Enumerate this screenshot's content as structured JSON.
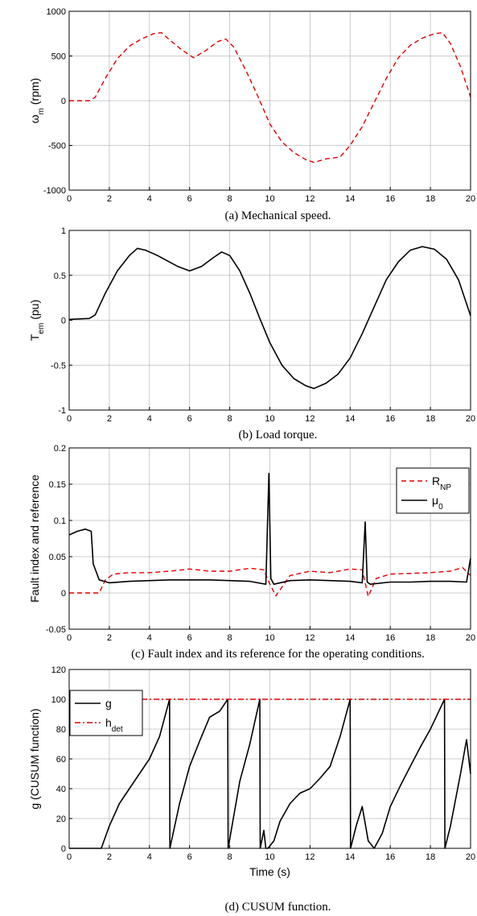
{
  "chart_data": [
    {
      "type": "line",
      "ylabel": "ω",
      "ylabel_sub": "m",
      "ylabel_tail": " (rpm)",
      "xlabel": "",
      "caption": "(a) Mechanical speed.",
      "xlim": [
        0,
        20
      ],
      "ylim": [
        -1000,
        1000
      ],
      "xticks": [
        "0",
        "2",
        "4",
        "6",
        "8",
        "10",
        "12",
        "14",
        "16",
        "18",
        "20"
      ],
      "yticks": [
        "-1000",
        "-500",
        "0",
        "500",
        "1000"
      ],
      "grid": true,
      "legend": "none",
      "series": [
        {
          "color": "#e00000",
          "dash": "dashed",
          "x": [
            0,
            1.0,
            1.3,
            1.8,
            2.4,
            3.0,
            3.6,
            4.2,
            4.6,
            5.0,
            5.6,
            6.2,
            6.8,
            7.4,
            7.8,
            8.2,
            8.8,
            9.4,
            10.0,
            10.6,
            11.2,
            11.8,
            12.2,
            12.8,
            13.5,
            14.0,
            14.6,
            15.2,
            15.8,
            16.4,
            17.0,
            17.6,
            18.2,
            18.6,
            19.0,
            19.5,
            20.0
          ],
          "y": [
            0,
            0,
            40,
            250,
            470,
            610,
            690,
            750,
            760,
            680,
            570,
            480,
            560,
            660,
            690,
            600,
            340,
            50,
            -260,
            -460,
            -580,
            -660,
            -690,
            -650,
            -630,
            -500,
            -290,
            -20,
            250,
            480,
            620,
            700,
            750,
            760,
            640,
            380,
            40
          ]
        }
      ]
    },
    {
      "type": "line",
      "ylabel": "T",
      "ylabel_sub": "em",
      "ylabel_tail": " (pu)",
      "xlabel": "",
      "caption": "(b) Load torque.",
      "xlim": [
        0,
        20
      ],
      "ylim": [
        -1,
        1
      ],
      "xticks": [
        "0",
        "2",
        "4",
        "6",
        "8",
        "10",
        "12",
        "14",
        "16",
        "18",
        "20"
      ],
      "yticks": [
        "-1",
        "-0.5",
        "0",
        "0.5",
        "1"
      ],
      "grid": true,
      "legend": "none",
      "series": [
        {
          "color": "#000000",
          "dash": "solid",
          "x": [
            0,
            1.0,
            1.3,
            1.8,
            2.4,
            3.0,
            3.4,
            3.8,
            4.4,
            4.9,
            5.4,
            6.0,
            6.6,
            7.2,
            7.6,
            8.0,
            8.5,
            9.0,
            9.5,
            10.0,
            10.6,
            11.2,
            11.8,
            12.2,
            12.8,
            13.4,
            14.0,
            14.6,
            15.2,
            15.8,
            16.4,
            17.0,
            17.6,
            18.2,
            18.8,
            19.4,
            20.0
          ],
          "y": [
            0.01,
            0.02,
            0.06,
            0.3,
            0.55,
            0.72,
            0.8,
            0.78,
            0.72,
            0.66,
            0.6,
            0.55,
            0.6,
            0.7,
            0.76,
            0.72,
            0.55,
            0.3,
            0.02,
            -0.25,
            -0.5,
            -0.65,
            -0.73,
            -0.76,
            -0.7,
            -0.6,
            -0.42,
            -0.15,
            0.15,
            0.45,
            0.65,
            0.78,
            0.82,
            0.79,
            0.68,
            0.45,
            0.05
          ]
        }
      ]
    },
    {
      "type": "line",
      "ylabel": "Fault index and reference",
      "xlabel": "",
      "caption": "(c) Fault index and its reference for the operating conditions.",
      "xlim": [
        0,
        20
      ],
      "ylim": [
        -0.05,
        0.2
      ],
      "xticks": [
        "0",
        "2",
        "4",
        "6",
        "8",
        "10",
        "12",
        "14",
        "16",
        "18",
        "20"
      ],
      "yticks": [
        "-0.05",
        "0",
        "0.05",
        "0.1",
        "0.15",
        "0.2"
      ],
      "grid": true,
      "legend": "top-right",
      "series": [
        {
          "name": "R",
          "name_sub": "NP",
          "color": "#e00000",
          "dash": "dashed",
          "x": [
            0,
            1.5,
            1.8,
            2.2,
            3.0,
            4.0,
            5.0,
            6.0,
            7.0,
            8.0,
            9.0,
            9.7,
            10.0,
            10.3,
            11.0,
            12.0,
            13.0,
            14.0,
            14.6,
            14.9,
            15.3,
            16.0,
            17.0,
            18.0,
            19.0,
            19.6,
            20.0
          ],
          "y": [
            0,
            0,
            0.018,
            0.026,
            0.028,
            0.028,
            0.03,
            0.033,
            0.03,
            0.03,
            0.034,
            0.032,
            0.012,
            -0.004,
            0.024,
            0.03,
            0.028,
            0.033,
            0.032,
            -0.005,
            0.02,
            0.026,
            0.027,
            0.028,
            0.03,
            0.035,
            0.024
          ]
        },
        {
          "name": "μ",
          "name_sub": "0",
          "color": "#000000",
          "dash": "solid",
          "x": [
            0,
            0.4,
            0.8,
            1.1,
            1.2,
            1.5,
            2.0,
            3.0,
            4.0,
            5.0,
            6.0,
            7.0,
            8.0,
            9.0,
            9.8,
            9.95,
            10.05,
            10.2,
            11.0,
            12.0,
            13.0,
            14.0,
            14.6,
            14.75,
            14.85,
            15.0,
            16.0,
            17.0,
            18.0,
            19.0,
            19.8,
            20.0
          ],
          "y": [
            0.08,
            0.085,
            0.088,
            0.085,
            0.04,
            0.018,
            0.014,
            0.016,
            0.017,
            0.018,
            0.018,
            0.018,
            0.017,
            0.016,
            0.012,
            0.165,
            0.02,
            0.012,
            0.017,
            0.018,
            0.017,
            0.016,
            0.014,
            0.098,
            0.015,
            0.012,
            0.015,
            0.015,
            0.016,
            0.016,
            0.015,
            0.048
          ]
        }
      ]
    },
    {
      "type": "line",
      "ylabel": "g (CUSUM function)",
      "xlabel": "Time (s)",
      "caption": "(d) CUSUM function.",
      "xlim": [
        0,
        20
      ],
      "ylim": [
        0,
        120
      ],
      "xticks": [
        "0",
        "2",
        "4",
        "6",
        "8",
        "10",
        "12",
        "14",
        "16",
        "18",
        "20"
      ],
      "yticks": [
        "0",
        "20",
        "40",
        "60",
        "80",
        "100",
        "120"
      ],
      "grid": true,
      "legend": "top-left",
      "series": [
        {
          "name": "g",
          "color": "#000000",
          "dash": "solid",
          "x": [
            0,
            1.6,
            2.0,
            2.5,
            3.0,
            3.5,
            4.0,
            4.5,
            5.0,
            5.02,
            5.5,
            6.0,
            6.5,
            7.0,
            7.5,
            7.9,
            7.92,
            8.5,
            9.0,
            9.5,
            9.52,
            9.7,
            9.8,
            9.9,
            10.2,
            10.5,
            11.0,
            11.5,
            12.0,
            12.5,
            13.0,
            13.5,
            14.0,
            14.02,
            14.3,
            14.6,
            14.9,
            15.2,
            15.6,
            16.0,
            16.5,
            17.0,
            17.5,
            18.0,
            18.7,
            18.72,
            19.0,
            19.5,
            19.8,
            20.0
          ],
          "y": [
            0,
            0,
            15,
            30,
            40,
            50,
            60,
            75,
            100,
            0,
            30,
            55,
            72,
            88,
            92,
            100,
            0,
            45,
            70,
            100,
            0,
            12,
            0,
            0,
            5,
            18,
            30,
            37,
            40,
            47,
            55,
            75,
            100,
            0,
            15,
            28,
            5,
            0,
            10,
            28,
            42,
            55,
            68,
            80,
            100,
            0,
            15,
            50,
            73,
            50
          ]
        },
        {
          "name": "h",
          "name_sub": "det",
          "color": "#e00000",
          "dash": "dashdot",
          "x": [
            0,
            20
          ],
          "y": [
            100,
            100
          ]
        }
      ]
    }
  ]
}
